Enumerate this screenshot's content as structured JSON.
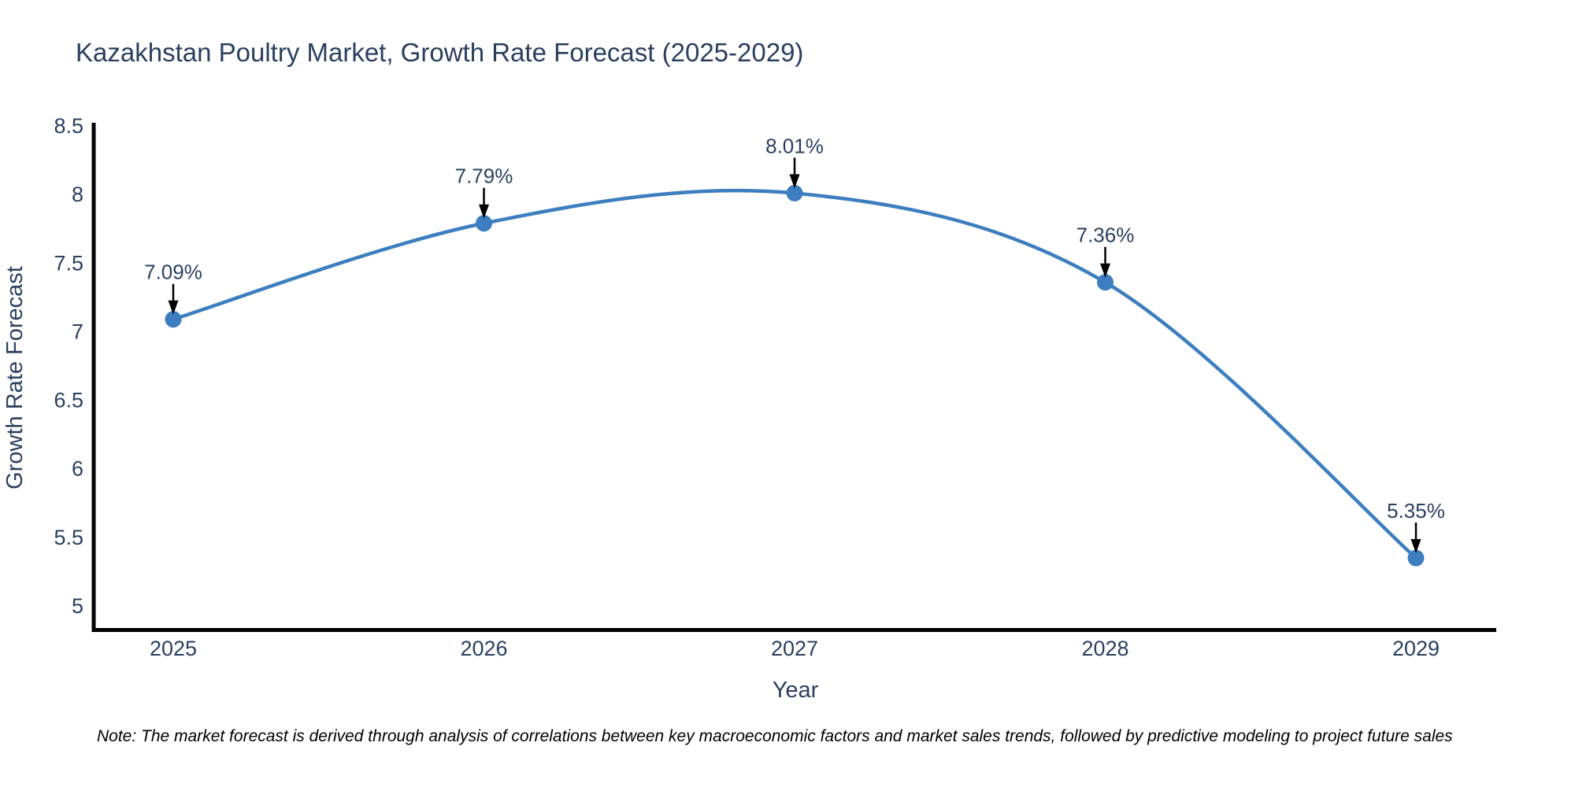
{
  "note": "Note: The market forecast is derived through analysis of correlations between key macroeconomic factors and market sales trends, followed by predictive modeling to project future sales",
  "chart_data": {
    "type": "line",
    "title": "Kazakhstan Poultry Market, Growth Rate Forecast (2025-2029)",
    "xlabel": "Year",
    "ylabel": "Growth Rate Forecast",
    "categories": [
      "2025",
      "2026",
      "2027",
      "2028",
      "2029"
    ],
    "series": [
      {
        "name": "Growth Rate Forecast",
        "values": [
          7.09,
          7.79,
          8.01,
          7.36,
          5.35
        ]
      }
    ],
    "point_labels": [
      "7.09%",
      "7.79%",
      "8.01%",
      "7.36%",
      "5.35%"
    ],
    "yticks": [
      8.5,
      8.0,
      7.5,
      7.0,
      6.5,
      6.0,
      5.5,
      5.0
    ],
    "ylim": [
      4.83,
      8.5
    ],
    "grid": false,
    "legend": "none",
    "line_shape": "spline",
    "marker": "circle",
    "annotation_style": "down-arrow-to-point",
    "colors": {
      "line": "#3c7ebf",
      "marker": "#3c7ebf",
      "axis": "#000000",
      "text": "#2a3f5f",
      "arrow": "#000000",
      "note_text": "#000000"
    }
  }
}
